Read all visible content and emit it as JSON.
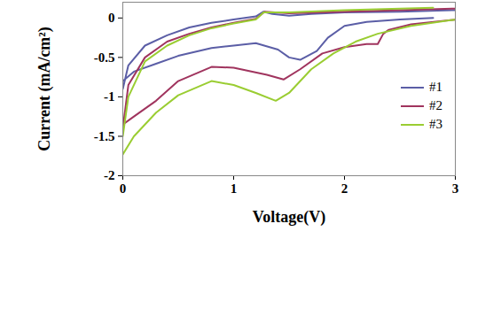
{
  "chart_data": {
    "type": "line",
    "xlabel": "Voltage(V)",
    "ylabel": "Current (mA/cm²)",
    "xlim": [
      0,
      3
    ],
    "xticks": [
      0,
      1,
      2,
      3
    ],
    "ylim": [
      -2,
      0.2
    ],
    "yticks": [
      -2,
      -1.5,
      -1,
      -0.5,
      0
    ],
    "grid": false,
    "legend": "right",
    "series": [
      {
        "name": "#1",
        "color": "#5b5ea6",
        "x": [
          0,
          0.05,
          0.2,
          0.4,
          0.6,
          0.8,
          1.0,
          1.2,
          1.27,
          1.35,
          1.5,
          1.7,
          2.0,
          2.5,
          3.0,
          null,
          2.8,
          2.5,
          2.2,
          2.0,
          1.85,
          1.75,
          1.6,
          1.5,
          1.4,
          1.2,
          1.0,
          0.8,
          0.5,
          0.3,
          0.1,
          0
        ],
        "values": [
          -0.9,
          -0.6,
          -0.35,
          -0.22,
          -0.12,
          -0.06,
          -0.02,
          0.02,
          0.08,
          0.05,
          0.03,
          0.05,
          0.07,
          0.08,
          0.1,
          null,
          0.0,
          -0.02,
          -0.05,
          -0.1,
          -0.25,
          -0.42,
          -0.53,
          -0.5,
          -0.4,
          -0.32,
          -0.35,
          -0.38,
          -0.48,
          -0.58,
          -0.68,
          -0.8
        ]
      },
      {
        "name": "#2",
        "color": "#a0345e",
        "x": [
          0,
          0.05,
          0.2,
          0.4,
          0.6,
          0.8,
          1.0,
          1.2,
          1.28,
          1.5,
          2.0,
          2.5,
          3.0,
          null,
          3.0,
          2.6,
          2.4,
          2.35,
          2.3,
          2.2,
          2.0,
          1.8,
          1.6,
          1.45,
          1.3,
          1.0,
          0.8,
          0.5,
          0.3,
          0.1,
          0
        ],
        "values": [
          -1.4,
          -0.85,
          -0.5,
          -0.3,
          -0.2,
          -0.12,
          -0.06,
          -0.01,
          0.08,
          0.06,
          0.08,
          0.1,
          0.12,
          null,
          -0.02,
          -0.08,
          -0.15,
          -0.2,
          -0.33,
          -0.33,
          -0.37,
          -0.45,
          -0.65,
          -0.78,
          -0.72,
          -0.63,
          -0.62,
          -0.8,
          -1.05,
          -1.25,
          -1.35
        ]
      },
      {
        "name": "#3",
        "color": "#9acd32",
        "x": [
          0,
          0.05,
          0.2,
          0.4,
          0.6,
          0.8,
          1.0,
          1.2,
          1.27,
          1.5,
          2.0,
          2.5,
          2.8,
          null,
          3.0,
          2.6,
          2.3,
          2.1,
          1.9,
          1.7,
          1.5,
          1.38,
          1.2,
          1.0,
          0.8,
          0.5,
          0.3,
          0.1,
          0
        ],
        "values": [
          -1.5,
          -1.0,
          -0.55,
          -0.35,
          -0.22,
          -0.13,
          -0.07,
          -0.02,
          0.07,
          0.07,
          0.1,
          0.12,
          0.13,
          null,
          -0.02,
          -0.1,
          -0.2,
          -0.3,
          -0.45,
          -0.65,
          -0.95,
          -1.05,
          -0.95,
          -0.85,
          -0.8,
          -0.98,
          -1.2,
          -1.5,
          -1.73
        ]
      }
    ]
  }
}
